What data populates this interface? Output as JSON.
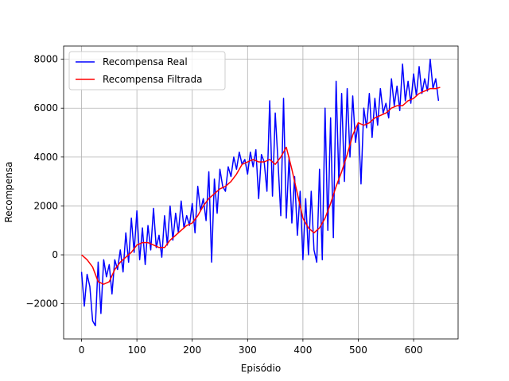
{
  "chart_data": {
    "type": "line",
    "xlabel": "Episódio",
    "ylabel": "Recompensa",
    "xlim": [
      -32.4,
      680.4
    ],
    "ylim": [
      -3440,
      8540
    ],
    "xticks": [
      0,
      100,
      200,
      300,
      400,
      500,
      600
    ],
    "yticks": [
      {
        "value": -2000,
        "label": "−2000"
      },
      0,
      2000,
      4000,
      6000,
      8000
    ],
    "grid": true,
    "legend": "upper-left",
    "series": [
      {
        "name": "Recompensa Real",
        "color": "#0000ff",
        "x": [
          0,
          5,
          10,
          15,
          20,
          25,
          30,
          35,
          40,
          45,
          50,
          55,
          60,
          65,
          70,
          75,
          80,
          85,
          90,
          95,
          100,
          105,
          110,
          115,
          120,
          125,
          130,
          135,
          140,
          145,
          150,
          155,
          160,
          165,
          170,
          175,
          180,
          185,
          190,
          195,
          200,
          205,
          210,
          215,
          220,
          225,
          230,
          235,
          240,
          245,
          250,
          255,
          260,
          265,
          270,
          275,
          280,
          285,
          290,
          295,
          300,
          305,
          310,
          315,
          320,
          325,
          330,
          335,
          340,
          345,
          350,
          355,
          360,
          365,
          370,
          375,
          380,
          385,
          390,
          395,
          400,
          405,
          410,
          415,
          420,
          425,
          430,
          435,
          440,
          445,
          450,
          455,
          460,
          465,
          470,
          475,
          480,
          485,
          490,
          495,
          500,
          505,
          510,
          515,
          520,
          525,
          530,
          535,
          540,
          545,
          550,
          555,
          560,
          565,
          570,
          575,
          580,
          585,
          590,
          595,
          600,
          605,
          610,
          615,
          620,
          625,
          630,
          635,
          640,
          645
        ],
        "values": [
          -700,
          -2100,
          -800,
          -1300,
          -2700,
          -2900,
          -300,
          -2400,
          -200,
          -900,
          -400,
          -1600,
          -200,
          -600,
          200,
          -700,
          900,
          -300,
          1500,
          100,
          1800,
          -200,
          1100,
          -400,
          1200,
          200,
          1900,
          300,
          800,
          -100,
          1600,
          400,
          2000,
          600,
          1700,
          900,
          2200,
          1100,
          1600,
          1200,
          2100,
          900,
          2800,
          1800,
          2300,
          1400,
          3400,
          -300,
          3100,
          1700,
          3500,
          2800,
          2600,
          3600,
          3200,
          4000,
          3500,
          4200,
          3700,
          3900,
          3300,
          4200,
          3600,
          4300,
          2300,
          4100,
          3800,
          2600,
          6300,
          2400,
          5800,
          3800,
          1600,
          6400,
          1500,
          4000,
          1300,
          3200,
          800,
          2600,
          -200,
          2300,
          0,
          2600,
          200,
          -300,
          3500,
          -200,
          6000,
          1000,
          5600,
          700,
          7100,
          2900,
          6600,
          3000,
          6800,
          4000,
          6500,
          4600,
          5400,
          2900,
          6000,
          5200,
          6600,
          4800,
          6400,
          5300,
          6800,
          5800,
          6200,
          5600,
          7200,
          6100,
          6900,
          5900,
          7800,
          6300,
          7100,
          6200,
          7400,
          6500,
          7700,
          6600,
          7200,
          6700,
          8000,
          6800,
          7200,
          6300
        ]
      },
      {
        "name": "Recompensa Filtrada",
        "color": "#ff0000",
        "x": [
          0,
          10,
          20,
          30,
          40,
          50,
          60,
          70,
          80,
          90,
          100,
          110,
          120,
          130,
          140,
          150,
          160,
          170,
          180,
          190,
          200,
          210,
          220,
          230,
          240,
          250,
          260,
          270,
          280,
          290,
          300,
          310,
          320,
          330,
          340,
          350,
          360,
          370,
          380,
          390,
          400,
          410,
          420,
          430,
          440,
          450,
          460,
          470,
          480,
          490,
          500,
          510,
          520,
          530,
          540,
          550,
          560,
          570,
          580,
          590,
          600,
          610,
          620,
          630,
          640,
          648
        ],
        "values": [
          0,
          -200,
          -500,
          -1100,
          -1200,
          -1100,
          -600,
          -300,
          -100,
          100,
          400,
          500,
          500,
          400,
          300,
          300,
          600,
          800,
          1000,
          1200,
          1300,
          1600,
          2000,
          2300,
          2500,
          2700,
          2800,
          3000,
          3300,
          3700,
          3800,
          3900,
          3800,
          3800,
          3900,
          3700,
          4000,
          4400,
          3500,
          2500,
          1500,
          1100,
          900,
          1100,
          1500,
          2100,
          2800,
          3400,
          4100,
          4900,
          5400,
          5300,
          5400,
          5600,
          5700,
          5800,
          6000,
          6100,
          6100,
          6300,
          6400,
          6600,
          6700,
          6800,
          6800,
          6850
        ]
      }
    ]
  }
}
